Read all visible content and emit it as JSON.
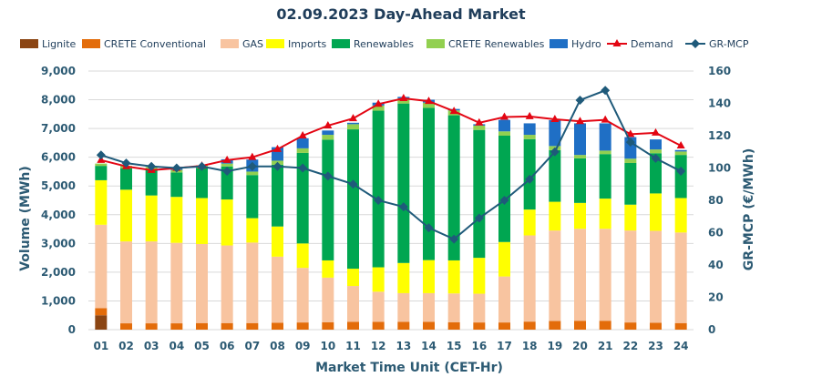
{
  "chart_data": {
    "type": "bar",
    "title": "02.09.2023  Day-Ahead Market",
    "xlabel": "Market Time Unit (CET-Hr)",
    "ylabel": "Volume (MWh)",
    "y2label": "GR-MCP (€/MWh)",
    "ylim": [
      0,
      9000
    ],
    "y2lim": [
      0,
      160
    ],
    "yticks": [
      "0",
      "1,000",
      "2,000",
      "3,000",
      "4,000",
      "5,000",
      "6,000",
      "7,000",
      "8,000",
      "9,000"
    ],
    "y2ticks": [
      "0",
      "20",
      "40",
      "60",
      "80",
      "100",
      "120",
      "140",
      "160"
    ],
    "categories": [
      "01",
      "02",
      "03",
      "04",
      "05",
      "06",
      "07",
      "08",
      "09",
      "10",
      "11",
      "12",
      "13",
      "14",
      "15",
      "16",
      "17",
      "18",
      "19",
      "20",
      "21",
      "22",
      "23",
      "24"
    ],
    "series": [
      {
        "name": "Lignite",
        "kind": "bar",
        "color": "#8b4513",
        "values": [
          500,
          0,
          0,
          0,
          0,
          0,
          0,
          0,
          0,
          0,
          0,
          0,
          0,
          0,
          0,
          0,
          0,
          0,
          0,
          0,
          0,
          0,
          0,
          0
        ]
      },
      {
        "name": "CRETE Conventional",
        "kind": "bar",
        "color": "#e36c0a",
        "values": [
          250,
          220,
          220,
          220,
          230,
          230,
          230,
          240,
          250,
          260,
          270,
          270,
          270,
          270,
          260,
          250,
          250,
          280,
          300,
          310,
          310,
          250,
          240,
          230
        ]
      },
      {
        "name": "GAS",
        "kind": "bar",
        "color": "#f8c4a0",
        "values": [
          2900,
          2850,
          2850,
          2800,
          2750,
          2700,
          2800,
          2300,
          1900,
          1550,
          1250,
          1050,
          1000,
          1000,
          1000,
          1000,
          1600,
          3000,
          3150,
          3200,
          3200,
          3200,
          3200,
          3150
        ]
      },
      {
        "name": "Imports",
        "kind": "bar",
        "color": "#ffff00",
        "values": [
          1550,
          1800,
          1600,
          1600,
          1600,
          1600,
          850,
          1050,
          850,
          600,
          600,
          850,
          1050,
          1150,
          1150,
          1250,
          1200,
          900,
          1000,
          900,
          1050,
          900,
          1300,
          1200
        ]
      },
      {
        "name": "Renewables",
        "kind": "bar",
        "color": "#00a651",
        "values": [
          500,
          750,
          900,
          850,
          1050,
          1150,
          1500,
          2150,
          3150,
          4200,
          4850,
          5450,
          5550,
          5300,
          5050,
          4450,
          3700,
          2450,
          1800,
          1550,
          1550,
          1450,
          1400,
          1500
        ]
      },
      {
        "name": "CRETE Renewables",
        "kind": "bar",
        "color": "#92d050",
        "values": [
          80,
          80,
          90,
          90,
          90,
          100,
          120,
          140,
          160,
          170,
          180,
          180,
          180,
          180,
          170,
          150,
          150,
          150,
          140,
          120,
          120,
          150,
          130,
          120
        ]
      },
      {
        "name": "Hydro",
        "kind": "bar",
        "color": "#1f6fc5",
        "values": [
          0,
          0,
          0,
          80,
          0,
          150,
          420,
          470,
          350,
          150,
          50,
          100,
          50,
          100,
          50,
          50,
          400,
          400,
          900,
          1100,
          950,
          750,
          350,
          50
        ]
      },
      {
        "name": "Demand",
        "kind": "line",
        "axis": "left",
        "color": "#e30613",
        "values": [
          5900,
          5680,
          5550,
          5620,
          5700,
          5900,
          6000,
          6280,
          6750,
          7100,
          7350,
          7850,
          8050,
          7950,
          7600,
          7200,
          7400,
          7420,
          7320,
          7250,
          7300,
          6800,
          6850,
          6400
        ]
      },
      {
        "name": "GR-MCP",
        "kind": "line",
        "axis": "right",
        "color": "#1f5a7a",
        "values": [
          108,
          103,
          101,
          100,
          101,
          98,
          101,
          101,
          100,
          95,
          90,
          80,
          76,
          63,
          56,
          69,
          80,
          93,
          110,
          142,
          148,
          116,
          106,
          98
        ]
      }
    ]
  }
}
